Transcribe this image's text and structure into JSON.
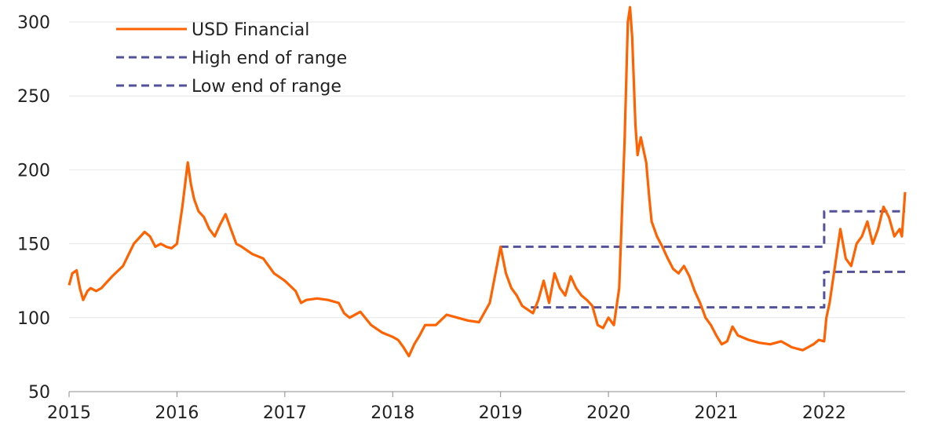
{
  "chart_data": {
    "type": "line",
    "title": "",
    "xlabel": "",
    "ylabel": "",
    "ylim": [
      50,
      300
    ],
    "xlim": [
      2015,
      2022.75
    ],
    "y_ticks": [
      50,
      100,
      150,
      200,
      250,
      300
    ],
    "x_ticks": [
      2015,
      2016,
      2017,
      2018,
      2019,
      2020,
      2021,
      2022
    ],
    "grid": "horizontal",
    "legend_position": "top-left",
    "legend": [
      {
        "label": "USD Financial",
        "style": "solid",
        "color": "#FF6200"
      },
      {
        "label": "High end of range",
        "style": "dashed",
        "color": "#525199"
      },
      {
        "label": "Low end of range",
        "style": "dashed",
        "color": "#525199"
      }
    ],
    "series": [
      {
        "name": "USD Financial",
        "color": "#FF6200",
        "style": "solid",
        "x": [
          2015.0,
          2015.03,
          2015.07,
          2015.1,
          2015.13,
          2015.17,
          2015.2,
          2015.25,
          2015.3,
          2015.4,
          2015.5,
          2015.6,
          2015.7,
          2015.75,
          2015.8,
          2015.85,
          2015.9,
          2015.95,
          2016.0,
          2016.05,
          2016.1,
          2016.13,
          2016.16,
          2016.2,
          2016.25,
          2016.3,
          2016.35,
          2016.4,
          2016.45,
          2016.5,
          2016.55,
          2016.6,
          2016.7,
          2016.8,
          2016.9,
          2017.0,
          2017.1,
          2017.15,
          2017.2,
          2017.3,
          2017.4,
          2017.5,
          2017.55,
          2017.6,
          2017.7,
          2017.8,
          2017.9,
          2018.0,
          2018.05,
          2018.1,
          2018.15,
          2018.2,
          2018.25,
          2018.3,
          2018.4,
          2018.5,
          2018.6,
          2018.7,
          2018.8,
          2018.9,
          2019.0,
          2019.05,
          2019.1,
          2019.15,
          2019.2,
          2019.3,
          2019.35,
          2019.4,
          2019.45,
          2019.5,
          2019.55,
          2019.6,
          2019.65,
          2019.7,
          2019.75,
          2019.8,
          2019.85,
          2019.9,
          2019.95,
          2020.0,
          2020.05,
          2020.1,
          2020.15,
          2020.18,
          2020.2,
          2020.22,
          2020.25,
          2020.27,
          2020.3,
          2020.32,
          2020.35,
          2020.38,
          2020.4,
          2020.45,
          2020.5,
          2020.55,
          2020.6,
          2020.65,
          2020.7,
          2020.75,
          2020.8,
          2020.85,
          2020.9,
          2020.95,
          2021.0,
          2021.05,
          2021.1,
          2021.15,
          2021.2,
          2021.3,
          2021.4,
          2021.5,
          2021.6,
          2021.7,
          2021.8,
          2021.85,
          2021.9,
          2021.95,
          2022.0,
          2022.02,
          2022.05,
          2022.1,
          2022.15,
          2022.2,
          2022.25,
          2022.3,
          2022.35,
          2022.4,
          2022.45,
          2022.5,
          2022.55,
          2022.6,
          2022.65,
          2022.7,
          2022.72,
          2022.75
        ],
        "values": [
          122,
          130,
          132,
          120,
          112,
          118,
          120,
          118,
          120,
          128,
          135,
          150,
          158,
          155,
          148,
          150,
          148,
          147,
          150,
          175,
          205,
          190,
          180,
          172,
          168,
          160,
          155,
          163,
          170,
          160,
          150,
          148,
          143,
          140,
          130,
          125,
          118,
          110,
          112,
          113,
          112,
          110,
          103,
          100,
          104,
          95,
          90,
          87,
          85,
          80,
          74,
          82,
          88,
          95,
          95,
          102,
          100,
          98,
          97,
          110,
          148,
          130,
          120,
          115,
          108,
          103,
          112,
          125,
          110,
          130,
          120,
          115,
          128,
          120,
          115,
          112,
          108,
          95,
          93,
          100,
          95,
          120,
          220,
          300,
          310,
          290,
          230,
          210,
          222,
          215,
          205,
          180,
          165,
          155,
          148,
          140,
          133,
          130,
          135,
          128,
          118,
          110,
          100,
          95,
          88,
          82,
          84,
          94,
          88,
          85,
          83,
          82,
          84,
          80,
          78,
          80,
          82,
          85,
          84,
          100,
          110,
          135,
          160,
          140,
          135,
          150,
          155,
          165,
          150,
          160,
          175,
          168,
          155,
          160,
          155,
          185
        ]
      },
      {
        "name": "High end of range",
        "color": "#525199",
        "style": "dashed",
        "x": [
          2019.0,
          2022.0,
          2022.0,
          2022.75
        ],
        "values": [
          148,
          148,
          172,
          172
        ]
      },
      {
        "name": "Low end of range",
        "color": "#525199",
        "style": "dashed",
        "x": [
          2019.28,
          2022.0,
          2022.0,
          2022.75
        ],
        "values": [
          107,
          107,
          131,
          131
        ]
      }
    ]
  }
}
